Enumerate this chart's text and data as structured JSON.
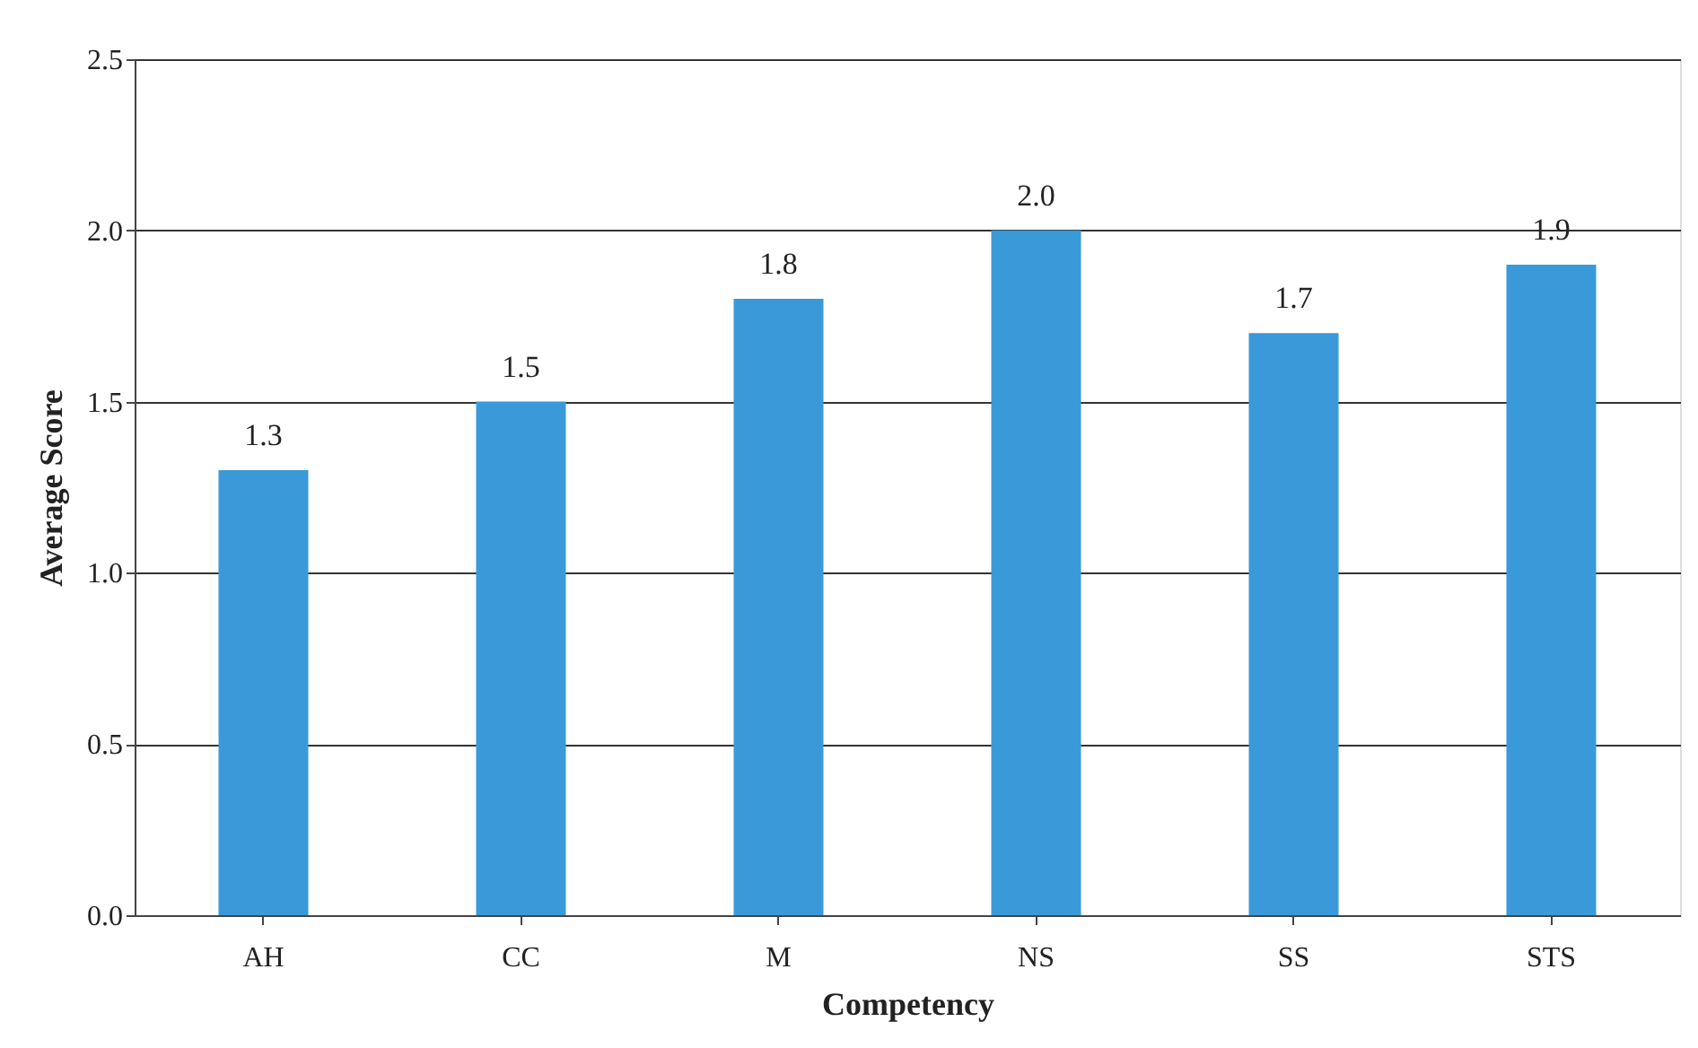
{
  "chart_data": {
    "type": "bar",
    "xlabel": "Competency",
    "ylabel": "Average Score",
    "categories": [
      "AH",
      "CC",
      "M",
      "NS",
      "SS",
      "STS"
    ],
    "values": [
      1.3,
      1.5,
      1.8,
      2.0,
      1.7,
      1.9
    ],
    "color": "#3a9ad9",
    "ylim": [
      0,
      2.5
    ],
    "yticks": [
      {
        "value": 0,
        "label": "0.0"
      },
      {
        "value": 0.5,
        "label": "0.5"
      },
      {
        "value": 1,
        "label": "1.0"
      },
      {
        "value": 1.5,
        "label": "1.5"
      },
      {
        "value": 2,
        "label": "2.0"
      },
      {
        "value": 2.5,
        "label": "2.5"
      }
    ],
    "value_labels": [
      "1.3",
      "1.5",
      "1.8",
      "2.0",
      "1.7",
      "1.9"
    ],
    "grid": "y"
  }
}
